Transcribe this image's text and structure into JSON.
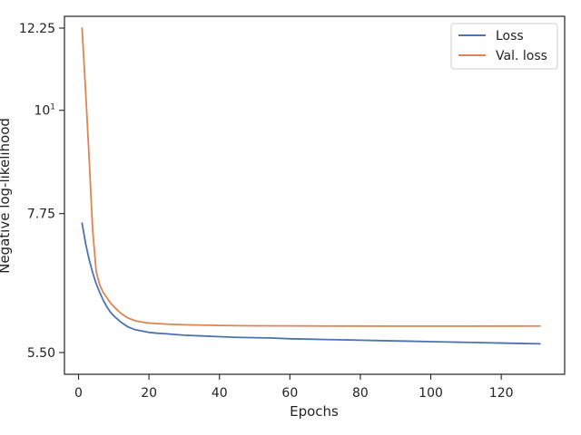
{
  "chart_data": {
    "type": "line",
    "xlabel": "Epochs",
    "ylabel": "Negative log-likelihood",
    "xlim": [
      -4,
      138
    ],
    "ylim": [
      5.5,
      12.25
    ],
    "y_scale": "log",
    "x_ticks": [
      0,
      20,
      40,
      60,
      80,
      100,
      120
    ],
    "y_ticks": [
      {
        "value": 5.5,
        "label": "5.50"
      },
      {
        "value": 7.75,
        "label": "7.75"
      },
      {
        "value": 10,
        "label": "10"
      },
      {
        "value": 12.25,
        "label": "12.25"
      }
    ],
    "grid": false,
    "legend_position": "top-right",
    "series": [
      {
        "name": "Loss",
        "color": "#4c72b0",
        "points": [
          [
            1,
            7.57
          ],
          [
            2,
            7.2
          ],
          [
            3,
            6.92
          ],
          [
            4,
            6.7
          ],
          [
            5,
            6.52
          ],
          [
            6,
            6.38
          ],
          [
            7,
            6.26
          ],
          [
            8,
            6.16
          ],
          [
            9,
            6.08
          ],
          [
            10,
            6.02
          ],
          [
            12,
            5.93
          ],
          [
            14,
            5.86
          ],
          [
            16,
            5.82
          ],
          [
            18,
            5.8
          ],
          [
            20,
            5.78
          ],
          [
            22,
            5.77
          ],
          [
            25,
            5.76
          ],
          [
            30,
            5.74
          ],
          [
            35,
            5.73
          ],
          [
            40,
            5.72
          ],
          [
            45,
            5.71
          ],
          [
            50,
            5.705
          ],
          [
            55,
            5.7
          ],
          [
            60,
            5.69
          ],
          [
            65,
            5.685
          ],
          [
            70,
            5.68
          ],
          [
            75,
            5.675
          ],
          [
            80,
            5.67
          ],
          [
            85,
            5.665
          ],
          [
            90,
            5.66
          ],
          [
            95,
            5.655
          ],
          [
            100,
            5.65
          ],
          [
            105,
            5.645
          ],
          [
            110,
            5.64
          ],
          [
            115,
            5.635
          ],
          [
            120,
            5.63
          ],
          [
            125,
            5.625
          ],
          [
            131,
            5.62
          ]
        ]
      },
      {
        "name": "Val. loss",
        "color": "#dd8452",
        "points": [
          [
            1,
            12.25
          ],
          [
            2,
            10.5
          ],
          [
            3,
            8.9
          ],
          [
            4,
            7.45
          ],
          [
            5,
            6.72
          ],
          [
            6,
            6.5
          ],
          [
            7,
            6.38
          ],
          [
            8,
            6.3
          ],
          [
            9,
            6.22
          ],
          [
            10,
            6.16
          ],
          [
            12,
            6.06
          ],
          [
            14,
            5.99
          ],
          [
            16,
            5.95
          ],
          [
            18,
            5.93
          ],
          [
            20,
            5.915
          ],
          [
            25,
            5.9
          ],
          [
            30,
            5.89
          ],
          [
            35,
            5.885
          ],
          [
            40,
            5.88
          ],
          [
            45,
            5.877
          ],
          [
            50,
            5.875
          ],
          [
            60,
            5.873
          ],
          [
            70,
            5.872
          ],
          [
            80,
            5.871
          ],
          [
            90,
            5.87
          ],
          [
            100,
            5.87
          ],
          [
            110,
            5.87
          ],
          [
            120,
            5.871
          ],
          [
            131,
            5.872
          ]
        ]
      }
    ]
  }
}
